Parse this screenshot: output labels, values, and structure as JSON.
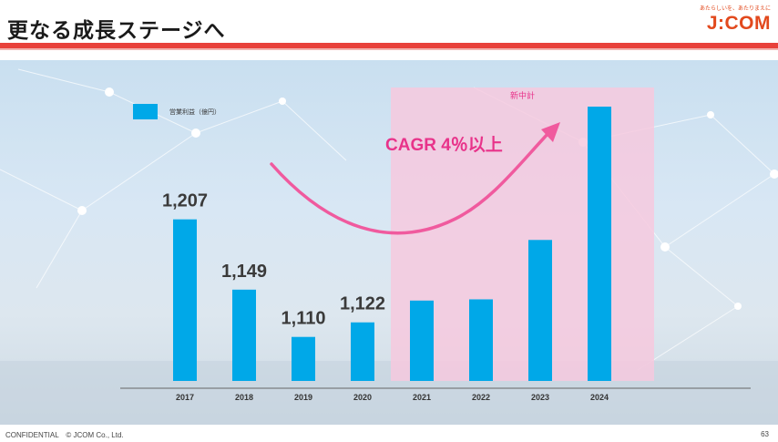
{
  "header": {
    "title": "更なる成長ステージへ",
    "logo_tagline": "あたらしいを、あたりまえに",
    "logo_text": "J:COM"
  },
  "footer": {
    "confidential": "CONFIDENTIAL　© JCOM Co., Ltd.",
    "page_number": "63"
  },
  "colors": {
    "bar": "#00a8e8",
    "accent_pink": "#e8338a",
    "highlight_region": "#f6c9de",
    "brand": "#e2491d"
  },
  "chart_data": {
    "type": "bar",
    "categories": [
      "2017",
      "2018",
      "2019",
      "2020",
      "2021",
      "2022",
      "2023",
      "2024"
    ],
    "series": [
      {
        "name": "営業利益（億円）",
        "values": [
          1207,
          1149,
          1110,
          1122,
          1140,
          1141,
          1190,
          1300
        ]
      }
    ],
    "data_labels": [
      "1,207",
      "1,149",
      "1,110",
      "1,122",
      "",
      "",
      "",
      ""
    ],
    "legend": "top-left",
    "highlight_region": {
      "from": "2021",
      "to": "2024",
      "label": "新中計"
    },
    "annotation": "CAGR 4％以上",
    "grid": false
  }
}
